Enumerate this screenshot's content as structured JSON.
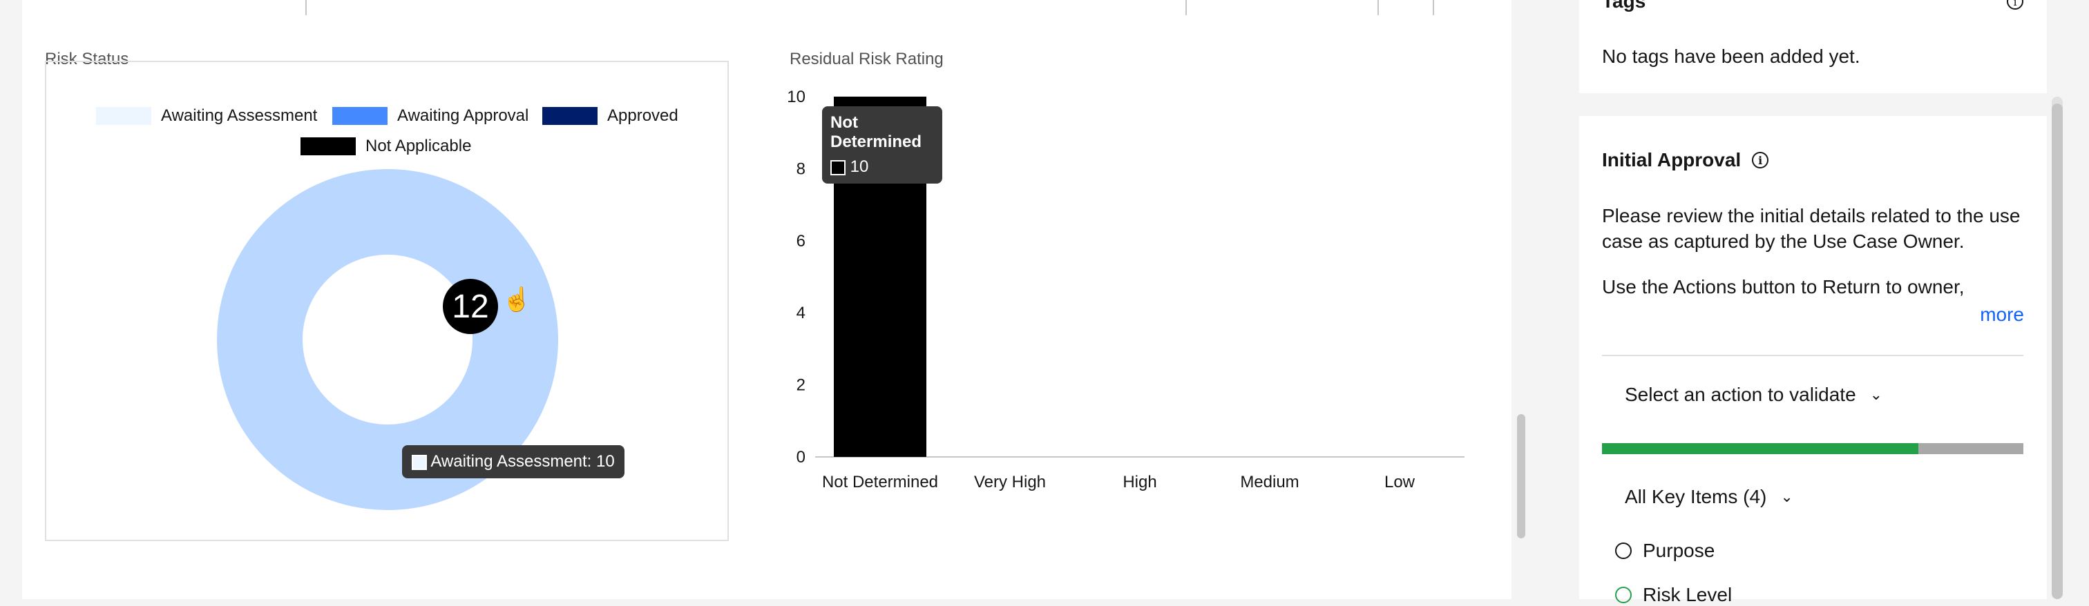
{
  "risk_status": {
    "title": "Risk Status",
    "legend": [
      {
        "label": "Awaiting Assessment",
        "color": "#edf5ff"
      },
      {
        "label": "Awaiting Approval",
        "color": "#4589ff"
      },
      {
        "label": "Approved",
        "color": "#001d6c"
      },
      {
        "label": "Not Applicable",
        "color": "#000000"
      }
    ],
    "total": "12",
    "tooltip": "Awaiting Assessment: 10",
    "donut_color": "#bad7ff"
  },
  "residual": {
    "title": "Residual Risk Rating",
    "tooltip_title": "Not Determined",
    "tooltip_value": "10"
  },
  "chart_data": {
    "type": "bar",
    "title": "Residual Risk Rating",
    "categories": [
      "Not Determined",
      "Very High",
      "High",
      "Medium",
      "Low"
    ],
    "values": [
      10,
      0,
      0,
      0,
      0
    ],
    "y_ticks": [
      "0",
      "2",
      "4",
      "6",
      "8",
      "10"
    ],
    "ylim": [
      0,
      10
    ],
    "bar_color": "#000000"
  },
  "tags": {
    "title": "Tags",
    "empty_text": "No tags have been added yet."
  },
  "approval": {
    "title": "Initial Approval",
    "text1": "Please review the initial details related to the use case as captured by the Use Case Owner.",
    "text2": "Use the Actions button to Return to owner,",
    "more": "more",
    "action_select": "Select an action to validate",
    "progress_fraction": 0.75,
    "progress_color": "#24a148",
    "key_items": "All Key Items (4)",
    "items": [
      "Purpose",
      "Risk Level"
    ]
  }
}
